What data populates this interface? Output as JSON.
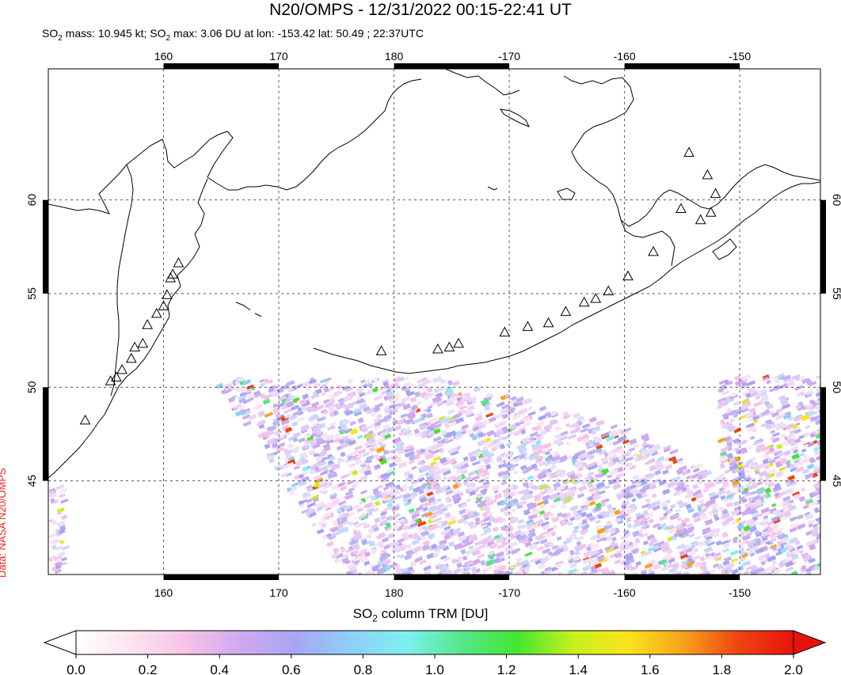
{
  "title": "N20/OMPS - 12/31/2022 00:15-22:41 UT",
  "subtitle": {
    "mass_prefix": "SO",
    "mass_sub": "2",
    "mass_text": " mass: 10.945 kt; SO",
    "max_sub": "2",
    "max_text": " max: 3.06 DU at lon: -153.42 lat: 50.49 ; 22:37UTC"
  },
  "credit": "Data: NASA N20/OMPS",
  "map": {
    "lon_labels": [
      "160",
      "170",
      "180",
      "-170",
      "-160",
      "-150"
    ],
    "lon_values": [
      160,
      170,
      180,
      190,
      200,
      210
    ],
    "lat_labels": [
      "45",
      "50",
      "55",
      "60"
    ],
    "lat_values": [
      45,
      50,
      55,
      60
    ],
    "lon_range": [
      150,
      217
    ],
    "lat_range": [
      40,
      67
    ],
    "volcano_symbol": "triangle-icon",
    "volcanoes": [
      [
        158.6,
        53.3
      ],
      [
        159.4,
        53.9
      ],
      [
        160.0,
        54.3
      ],
      [
        160.3,
        54.9
      ],
      [
        160.6,
        55.8
      ],
      [
        160.8,
        56.0
      ],
      [
        161.3,
        56.6
      ],
      [
        158.2,
        52.3
      ],
      [
        157.5,
        52.1
      ],
      [
        157.2,
        51.5
      ],
      [
        156.4,
        50.9
      ],
      [
        155.9,
        50.5
      ],
      [
        155.4,
        50.3
      ],
      [
        153.2,
        48.2
      ],
      [
        178.9,
        51.9
      ],
      [
        183.8,
        52.0
      ],
      [
        184.8,
        52.1
      ],
      [
        185.6,
        52.3
      ],
      [
        189.6,
        52.9
      ],
      [
        191.6,
        53.2
      ],
      [
        193.4,
        53.4
      ],
      [
        194.9,
        54.0
      ],
      [
        196.5,
        54.5
      ],
      [
        197.5,
        54.7
      ],
      [
        198.6,
        55.1
      ],
      [
        200.3,
        55.9
      ],
      [
        202.5,
        57.2
      ],
      [
        206.6,
        58.9
      ],
      [
        207.5,
        59.3
      ],
      [
        207.9,
        60.3
      ],
      [
        207.2,
        61.3
      ],
      [
        205.6,
        62.5
      ],
      [
        204.9,
        59.5
      ]
    ],
    "retrieval_note": ""
  },
  "colorbar": {
    "title_prefix": "SO",
    "title_sub": "2",
    "title_suffix": " column TRM [DU]",
    "ticks": [
      "0.0",
      "0.2",
      "0.4",
      "0.6",
      "0.8",
      "1.0",
      "1.2",
      "1.4",
      "1.6",
      "1.8",
      "2.0"
    ],
    "range": [
      0.0,
      2.0
    ],
    "colors": [
      "#ffffff",
      "#fbe4ef",
      "#f7c2e8",
      "#cfa8f0",
      "#a6a6f4",
      "#8fd0f6",
      "#7cf0f0",
      "#55e68a",
      "#43e630",
      "#c6f01c",
      "#fbe41c",
      "#f6a21c",
      "#ee4412",
      "#e8120c"
    ]
  }
}
